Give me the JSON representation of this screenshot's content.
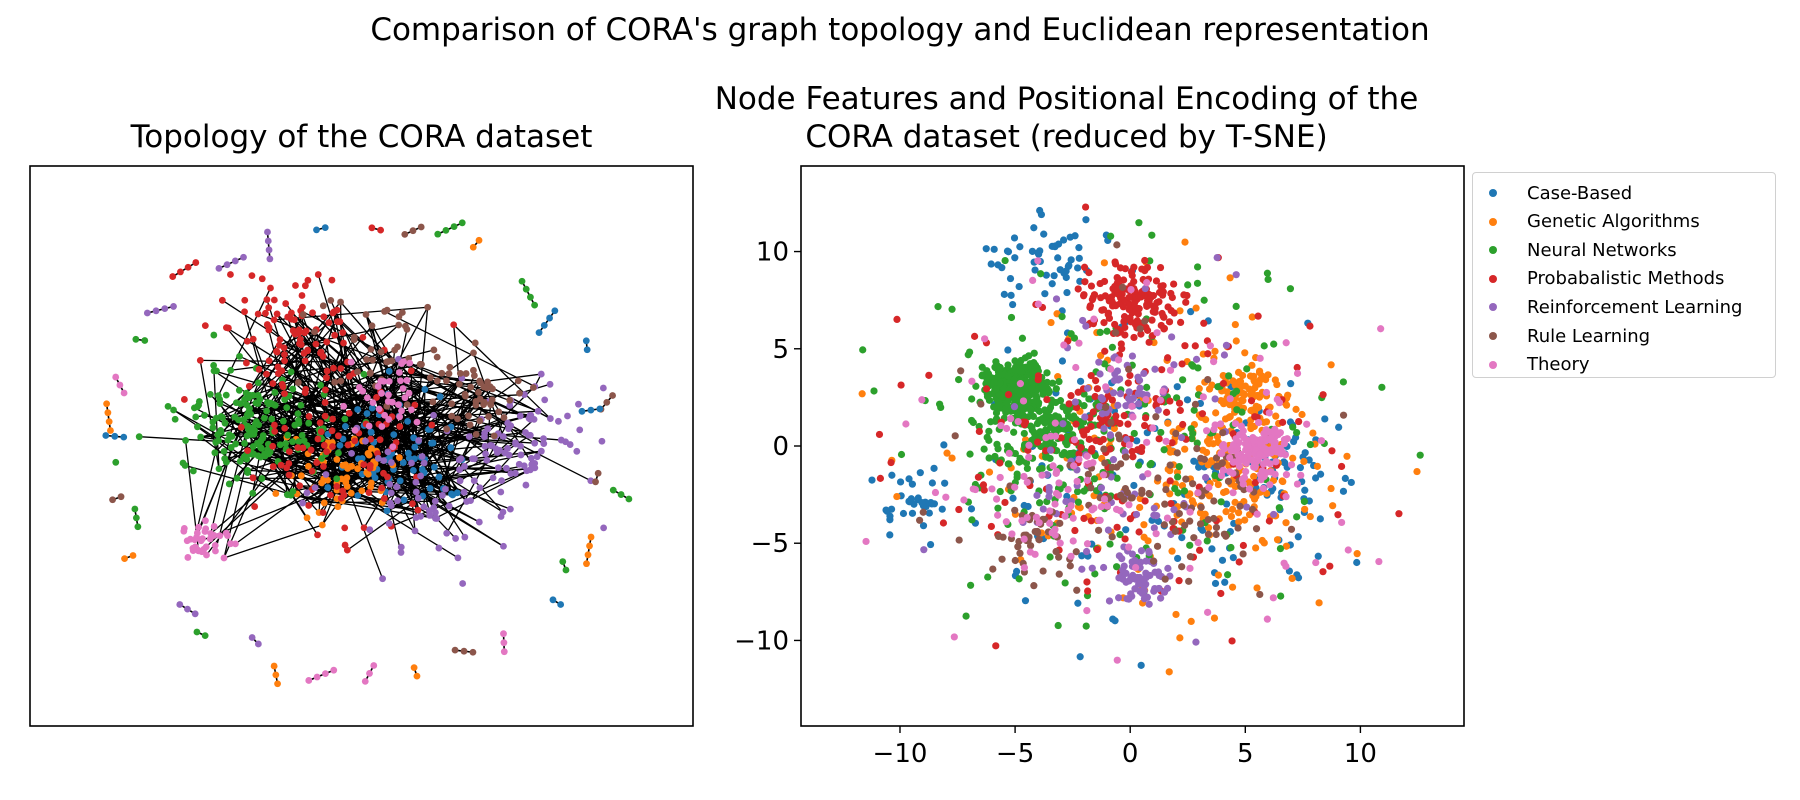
{
  "suptitle": "Comparison of CORA's graph topology and Euclidean representation",
  "colors": {
    "Case-Based": "#1f77b4",
    "Genetic Algorithms": "#ff7f0e",
    "Neural Networks": "#2ca02c",
    "Probabalistic Methods": "#d62728",
    "Reinforcement Learning": "#9467bd",
    "Rule Learning": "#8c564b",
    "Theory": "#e377c2"
  },
  "chart_data": [
    {
      "type": "network",
      "title": "Topology of the CORA dataset",
      "axes_visible": false,
      "grid": false,
      "categories": [
        "Case-Based",
        "Genetic Algorithms",
        "Neural Networks",
        "Probabalistic Methods",
        "Reinforcement Learning",
        "Rule Learning",
        "Theory"
      ],
      "node_mark": "dot",
      "edge_color": "#000000"
    },
    {
      "type": "scatter",
      "title_line1": "Node Features and Positional Encoding of the",
      "title_line2": "CORA dataset (reduced by T-SNE)",
      "xlabel": "",
      "ylabel": "",
      "xlim": [
        -14.3,
        14.5
      ],
      "ylim": [
        -14.4,
        14.4
      ],
      "xticks": [
        -10,
        -5,
        0,
        5,
        10
      ],
      "yticks": [
        -10,
        -5,
        0,
        5,
        10
      ],
      "xtick_labels": [
        "−10",
        "−5",
        "0",
        "5",
        "10"
      ],
      "ytick_labels": [
        "−10",
        "−5",
        "0",
        "5",
        "10"
      ],
      "grid": false,
      "legend_placement": "outside-right",
      "series": [
        {
          "name": "Case-Based",
          "clusters": [
            [
              -9.2,
              -3.0,
              1.3,
              0.1
            ],
            [
              6.5,
              -1.5,
              3.0,
              0.25
            ],
            [
              -3.5,
              9.5,
              2.0,
              0.15
            ],
            [
              1.0,
              -1.0,
              7.0,
              0.5
            ]
          ]
        },
        {
          "name": "Genetic Algorithms",
          "clusters": [
            [
              5.2,
              2.6,
              1.3,
              0.3
            ],
            [
              4.5,
              -1.0,
              2.3,
              0.3
            ],
            [
              1.0,
              -1.0,
              7.0,
              0.4
            ]
          ]
        },
        {
          "name": "Neural Networks",
          "clusters": [
            [
              -5.0,
              3.0,
              1.1,
              0.45
            ],
            [
              -4.0,
              1.0,
              2.0,
              0.25
            ],
            [
              0.0,
              0.0,
              8.0,
              0.3
            ]
          ]
        },
        {
          "name": "Probabalistic Methods",
          "clusters": [
            [
              0.2,
              7.3,
              1.6,
              0.35
            ],
            [
              -0.8,
              1.0,
              2.2,
              0.2
            ],
            [
              0.0,
              0.0,
              8.0,
              0.45
            ]
          ]
        },
        {
          "name": "Reinforcement Learning",
          "clusters": [
            [
              0.5,
              -6.7,
              1.1,
              0.4
            ],
            [
              0.0,
              3.0,
              1.6,
              0.2
            ],
            [
              -1.5,
              -2.5,
              3.5,
              0.2
            ],
            [
              0.0,
              0.0,
              7.5,
              0.2
            ]
          ]
        },
        {
          "name": "Rule Learning",
          "clusters": [
            [
              -4.0,
              -4.8,
              1.5,
              0.3
            ],
            [
              3.0,
              -2.5,
              2.2,
              0.3
            ],
            [
              -1.0,
              -1.5,
              1.8,
              0.15
            ],
            [
              0.0,
              0.0,
              7.0,
              0.25
            ]
          ]
        },
        {
          "name": "Theory",
          "clusters": [
            [
              5.5,
              -0.3,
              1.2,
              0.4
            ],
            [
              -3.0,
              -2.5,
              2.5,
              0.25
            ],
            [
              0.0,
              0.0,
              7.5,
              0.35
            ]
          ]
        }
      ]
    }
  ]
}
